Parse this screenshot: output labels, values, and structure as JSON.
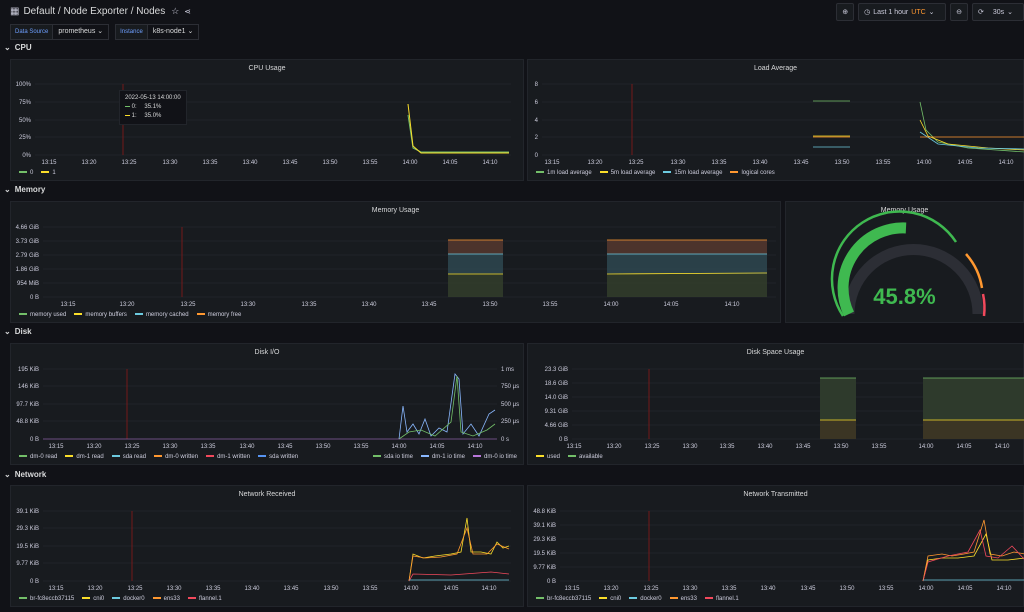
{
  "header": {
    "breadcrumb": "Default  / Node Exporter / Nodes",
    "time_range": "Last 1 hour",
    "tz": "UTC",
    "refresh": "30s"
  },
  "variables": [
    {
      "label": "Data Source",
      "value": "prometheus"
    },
    {
      "label": "Instance",
      "value": "k8s-node1"
    }
  ],
  "rows": {
    "cpu": "CPU",
    "memory": "Memory",
    "disk": "Disk",
    "network": "Network"
  },
  "colors": {
    "green": "#73bf69",
    "yellow": "#fade2a",
    "blue": "#5794f2",
    "cyan": "#8ab8ff",
    "orange": "#ff9830",
    "red": "#f2495c",
    "purple": "#b877d9",
    "teal": "#6ccadf"
  },
  "xticks_a": [
    "13:15",
    "13:20",
    "13:25",
    "13:30",
    "13:35",
    "13:40",
    "13:45",
    "13:50",
    "13:55",
    "14:00",
    "14:05",
    "14:10"
  ],
  "xticks_b": [
    "13:15",
    "13:20",
    "13:25",
    "13:30",
    "13:35",
    "13:40",
    "13:45",
    "13:50",
    "13:55",
    "14:00",
    "14:05",
    "14:10"
  ],
  "panels": {
    "cpu_usage": {
      "title": "CPU Usage",
      "yticks": [
        "100%",
        "75%",
        "50%",
        "25%",
        "0%"
      ],
      "legend": [
        "0",
        "1"
      ],
      "tooltip": {
        "time": "2022-05-13 14:00:00",
        "rows": [
          {
            "name": "0:",
            "value": "35.1%"
          },
          {
            "name": "1:",
            "value": "35.0%"
          }
        ]
      }
    },
    "load_avg": {
      "title": "Load Average",
      "yticks": [
        "8",
        "6",
        "4",
        "2",
        "0"
      ],
      "legend": [
        "1m load average",
        "5m load average",
        "15m load average",
        "logical cores"
      ]
    },
    "mem_usage": {
      "title": "Memory Usage",
      "yticks": [
        "4.66 GiB",
        "3.73 GiB",
        "2.79 GiB",
        "1.86 GiB",
        "954 MiB",
        "0 B"
      ],
      "legend": [
        "memory used",
        "memory buffers",
        "memory cached",
        "memory free"
      ]
    },
    "mem_gauge": {
      "title": "Memory Usage",
      "value": "45.8%",
      "fraction": 0.458
    },
    "disk_io": {
      "title": "Disk I/O",
      "yticks": [
        "195 KiB",
        "146 KiB",
        "97.7 KiB",
        "48.8 KiB",
        "0 B"
      ],
      "yticks_r": [
        "1 ms",
        "750 µs",
        "500 µs",
        "250 µs",
        "0 s"
      ],
      "legend": [
        "dm-0 read",
        "dm-1 read",
        "sda read",
        "dm-0 written",
        "dm-1 written",
        "sda written"
      ],
      "legend_r": [
        "sda io time",
        "dm-1 io time",
        "dm-0 io time"
      ]
    },
    "disk_space": {
      "title": "Disk Space Usage",
      "yticks": [
        "23.3 GiB",
        "18.6 GiB",
        "14.0 GiB",
        "9.31 GiB",
        "4.66 GiB",
        "0 B"
      ],
      "legend": [
        "used",
        "available"
      ]
    },
    "net_rx": {
      "title": "Network Received",
      "yticks": [
        "39.1 KiB",
        "29.3 KiB",
        "19.5 KiB",
        "9.77 KiB",
        "0 B"
      ],
      "legend": [
        "br-fc8eccb37115",
        "cni0",
        "docker0",
        "ens33",
        "flannel.1"
      ]
    },
    "net_tx": {
      "title": "Network Transmitted",
      "yticks": [
        "48.8 KiB",
        "39.1 KiB",
        "29.3 KiB",
        "19.5 KiB",
        "9.77 KiB",
        "0 B"
      ],
      "legend": [
        "br-fc8eccb37115",
        "cni0",
        "docker0",
        "ens33",
        "flannel.1"
      ]
    }
  }
}
